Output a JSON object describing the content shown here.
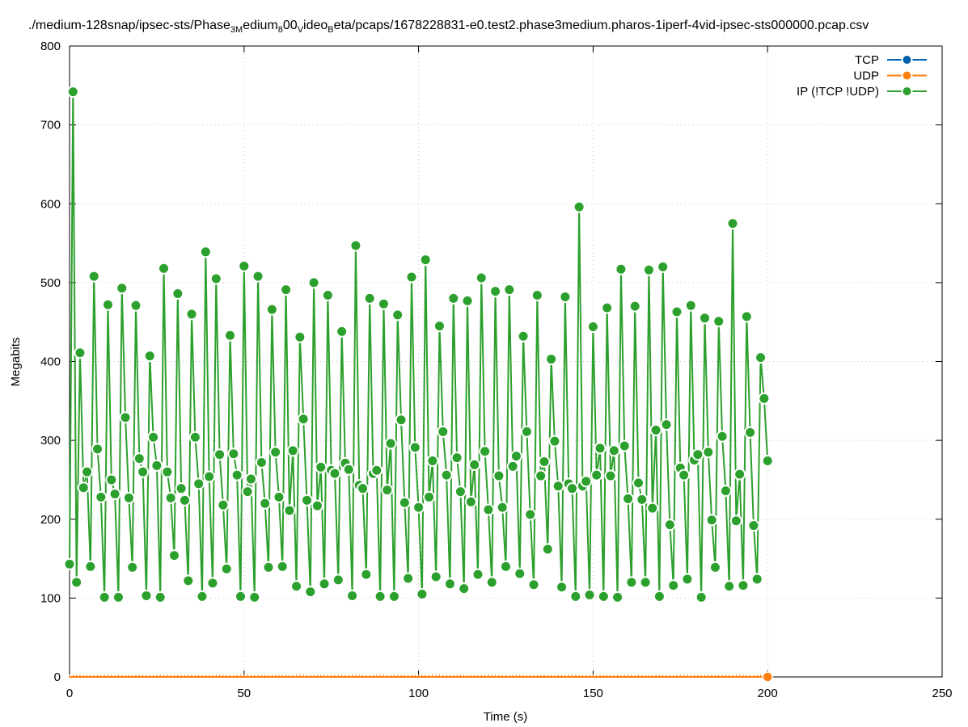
{
  "chart_data": {
    "type": "line",
    "title": {
      "segments": [
        {
          "t": "./medium-128snap/ipsec-sts/Phase",
          "sub": false
        },
        {
          "t": "3M",
          "sub": true
        },
        {
          "t": "edium",
          "sub": false
        },
        {
          "t": "8",
          "sub": true
        },
        {
          "t": "00",
          "sub": false
        },
        {
          "t": "V",
          "sub": true
        },
        {
          "t": "ideo",
          "sub": false
        },
        {
          "t": "B",
          "sub": true
        },
        {
          "t": "eta/pcaps/1678228831-e0.test2.phase3medium.pharos-1iperf-4vid-ipsec-sts000000.pcap.csv",
          "sub": false
        }
      ]
    },
    "xlabel": "Time (s)",
    "ylabel": "Megabits",
    "xlim": [
      0,
      250
    ],
    "ylim": [
      0,
      800
    ],
    "xticks": [
      0,
      50,
      100,
      150,
      200,
      250
    ],
    "yticks": [
      0,
      100,
      200,
      300,
      400,
      500,
      600,
      700,
      800
    ],
    "grid": true,
    "legend_position": "top-right",
    "series": [
      {
        "name": "TCP",
        "color": "#0060ad",
        "x": [],
        "y": []
      },
      {
        "name": "UDP",
        "color": "#ff7f0e",
        "x": [
          0,
          1,
          2,
          3,
          4,
          5,
          6,
          7,
          8,
          9,
          10,
          11,
          12,
          13,
          14,
          15,
          16,
          17,
          18,
          19,
          20,
          21,
          22,
          23,
          24,
          25,
          26,
          27,
          28,
          29,
          30,
          31,
          32,
          33,
          34,
          35,
          36,
          37,
          38,
          39,
          40,
          41,
          42,
          43,
          44,
          45,
          46,
          47,
          48,
          49,
          50,
          51,
          52,
          53,
          54,
          55,
          56,
          57,
          58,
          59,
          60,
          61,
          62,
          63,
          64,
          65,
          66,
          67,
          68,
          69,
          70,
          71,
          72,
          73,
          74,
          75,
          76,
          77,
          78,
          79,
          80,
          81,
          82,
          83,
          84,
          85,
          86,
          87,
          88,
          89,
          90,
          91,
          92,
          93,
          94,
          95,
          96,
          97,
          98,
          99,
          100,
          101,
          102,
          103,
          104,
          105,
          106,
          107,
          108,
          109,
          110,
          111,
          112,
          113,
          114,
          115,
          116,
          117,
          118,
          119,
          120,
          121,
          122,
          123,
          124,
          125,
          126,
          127,
          128,
          129,
          130,
          131,
          132,
          133,
          134,
          135,
          136,
          137,
          138,
          139,
          140,
          141,
          142,
          143,
          144,
          145,
          146,
          147,
          148,
          149,
          150,
          151,
          152,
          153,
          154,
          155,
          156,
          157,
          158,
          159,
          160,
          161,
          162,
          163,
          164,
          165,
          166,
          167,
          168,
          169,
          170,
          171,
          172,
          173,
          174,
          175,
          176,
          177,
          178,
          179,
          180,
          181,
          182,
          183,
          184,
          185,
          186,
          187,
          188,
          189,
          190,
          191,
          192,
          193,
          194,
          195,
          196,
          197,
          198,
          199,
          200
        ],
        "y": [
          0,
          0,
          0,
          0,
          0,
          0,
          0,
          0,
          0,
          0,
          0,
          0,
          0,
          0,
          0,
          0,
          0,
          0,
          0,
          0,
          0,
          0,
          0,
          0,
          0,
          0,
          0,
          0,
          0,
          0,
          0,
          0,
          0,
          0,
          0,
          0,
          0,
          0,
          0,
          0,
          0,
          0,
          0,
          0,
          0,
          0,
          0,
          0,
          0,
          0,
          0,
          0,
          0,
          0,
          0,
          0,
          0,
          0,
          0,
          0,
          0,
          0,
          0,
          0,
          0,
          0,
          0,
          0,
          0,
          0,
          0,
          0,
          0,
          0,
          0,
          0,
          0,
          0,
          0,
          0,
          0,
          0,
          0,
          0,
          0,
          0,
          0,
          0,
          0,
          0,
          0,
          0,
          0,
          0,
          0,
          0,
          0,
          0,
          0,
          0,
          0,
          0,
          0,
          0,
          0,
          0,
          0,
          0,
          0,
          0,
          0,
          0,
          0,
          0,
          0,
          0,
          0,
          0,
          0,
          0,
          0,
          0,
          0,
          0,
          0,
          0,
          0,
          0,
          0,
          0,
          0,
          0,
          0,
          0,
          0,
          0,
          0,
          0,
          0,
          0,
          0,
          0,
          0,
          0,
          0,
          0,
          0,
          0,
          0,
          0,
          0,
          0,
          0,
          0,
          0,
          0,
          0,
          0,
          0,
          0,
          0,
          0,
          0,
          0,
          0,
          0,
          0,
          0,
          0,
          0,
          0,
          0,
          0,
          0,
          0,
          0,
          0,
          0,
          0,
          0,
          0,
          0,
          0,
          0,
          0,
          0,
          0,
          0,
          0,
          0,
          0,
          0,
          0,
          0,
          0,
          0,
          0,
          0,
          0,
          0,
          0
        ]
      },
      {
        "name": "IP (!TCP  !UDP)",
        "color": "#2ca02c",
        "x": [
          0,
          1,
          2,
          3,
          4,
          5,
          6,
          7,
          8,
          9,
          10,
          11,
          12,
          13,
          14,
          15,
          16,
          17,
          18,
          19,
          20,
          21,
          22,
          23,
          24,
          25,
          26,
          27,
          28,
          29,
          30,
          31,
          32,
          33,
          34,
          35,
          36,
          37,
          38,
          39,
          40,
          41,
          42,
          43,
          44,
          45,
          46,
          47,
          48,
          49,
          50,
          51,
          52,
          53,
          54,
          55,
          56,
          57,
          58,
          59,
          60,
          61,
          62,
          63,
          64,
          65,
          66,
          67,
          68,
          69,
          70,
          71,
          72,
          73,
          74,
          75,
          76,
          77,
          78,
          79,
          80,
          81,
          82,
          83,
          84,
          85,
          86,
          87,
          88,
          89,
          90,
          91,
          92,
          93,
          94,
          95,
          96,
          97,
          98,
          99,
          100,
          101,
          102,
          103,
          104,
          105,
          106,
          107,
          108,
          109,
          110,
          111,
          112,
          113,
          114,
          115,
          116,
          117,
          118,
          119,
          120,
          121,
          122,
          123,
          124,
          125,
          126,
          127,
          128,
          129,
          130,
          131,
          132,
          133,
          134,
          135,
          136,
          137,
          138,
          139,
          140,
          141,
          142,
          143,
          144,
          145,
          146,
          147,
          148,
          149,
          150,
          151,
          152,
          153,
          154,
          155,
          156,
          157,
          158,
          159,
          160,
          161,
          162,
          163,
          164,
          165,
          166,
          167,
          168,
          169,
          170,
          171,
          172,
          173,
          174,
          175,
          176,
          177,
          178,
          179,
          180,
          181,
          182,
          183,
          184,
          185,
          186,
          187,
          188,
          189,
          190,
          191,
          192,
          193,
          194,
          195,
          196,
          197,
          198,
          199,
          200
        ],
        "y": [
          143,
          742,
          120,
          411,
          240,
          260,
          140,
          508,
          289,
          228,
          101,
          472,
          250,
          232,
          101,
          493,
          329,
          227,
          139,
          471,
          277,
          260,
          103,
          407,
          304,
          268,
          101,
          518,
          260,
          227,
          154,
          486,
          239,
          224,
          122,
          460,
          304,
          245,
          102,
          539,
          254,
          119,
          505,
          282,
          218,
          137,
          433,
          283,
          256,
          102,
          521,
          235,
          251,
          101,
          508,
          272,
          220,
          139,
          466,
          285,
          228,
          140,
          491,
          211,
          287,
          115,
          431,
          327,
          224,
          108,
          500,
          217,
          266,
          118,
          484,
          262,
          258,
          123,
          438,
          271,
          263,
          103,
          547,
          243,
          239,
          130,
          480,
          258,
          262,
          102,
          473,
          237,
          296,
          102,
          459,
          326,
          221,
          125,
          507,
          291,
          215,
          105,
          529,
          228,
          274,
          127,
          445,
          311,
          256,
          118,
          480,
          278,
          235,
          112,
          477,
          222,
          269,
          130,
          506,
          286,
          212,
          120,
          489,
          255,
          215,
          140,
          491,
          267,
          280,
          131,
          432,
          311,
          206,
          117,
          484,
          255,
          273,
          162,
          403,
          299,
          242,
          114,
          482,
          245,
          239,
          102,
          596,
          242,
          248,
          104,
          444,
          256,
          290,
          102,
          468,
          255,
          287,
          101,
          517,
          293,
          226,
          120,
          470,
          246,
          225,
          120,
          516,
          214,
          313,
          102,
          520,
          320,
          193,
          116,
          463,
          265,
          256,
          124,
          471,
          275,
          282,
          101,
          455,
          285,
          199,
          139,
          451,
          305,
          236,
          115,
          575,
          198,
          257,
          116,
          457,
          310,
          192,
          124,
          405,
          353,
          274
        ]
      }
    ]
  }
}
